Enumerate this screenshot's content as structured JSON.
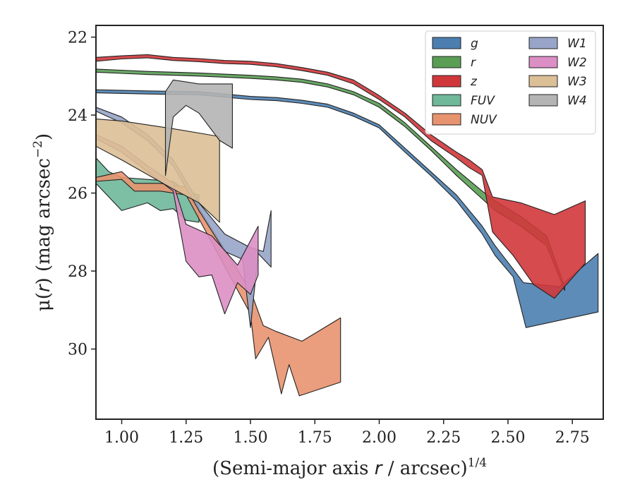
{
  "chart_data": {
    "type": "area",
    "xlabel": "(Semi-major axis r / arcsec)^{1/4}",
    "xlabel_parts": {
      "prefix": "(Semi-major axis ",
      "var": "r",
      "mid": " / arcsec)",
      "sup": "1/4"
    },
    "ylabel": "μ(r) (mag arcsec^-2)",
    "ylabel_parts": {
      "mu": "μ(",
      "var": "r",
      "rest": ") (mag arcsec",
      "sup": "−2",
      "close": ")"
    },
    "xlim": [
      0.9,
      2.87
    ],
    "ylim": [
      31.8,
      21.7
    ],
    "y_inverted": true,
    "xticks": [
      1.0,
      1.25,
      1.5,
      1.75,
      2.0,
      2.25,
      2.5,
      2.75
    ],
    "xtick_labels": [
      "1.00",
      "1.25",
      "1.50",
      "1.75",
      "2.00",
      "2.25",
      "2.50",
      "2.75"
    ],
    "yticks": [
      22,
      24,
      26,
      28,
      30
    ],
    "ytick_labels": [
      "22",
      "24",
      "26",
      "28",
      "30"
    ],
    "legend": {
      "position": "top-right",
      "columns": 2
    },
    "series": [
      {
        "name": "g",
        "label_main": "g",
        "label_sub": "",
        "color": "#4c7fb0",
        "upper": [
          [
            0.9,
            23.35
          ],
          [
            1.1,
            23.38
          ],
          [
            1.3,
            23.4
          ],
          [
            1.5,
            23.52
          ],
          [
            1.6,
            23.55
          ],
          [
            1.7,
            23.62
          ],
          [
            1.8,
            23.72
          ],
          [
            1.9,
            23.95
          ],
          [
            2.0,
            24.25
          ],
          [
            2.1,
            24.85
          ],
          [
            2.2,
            25.45
          ],
          [
            2.3,
            26.05
          ],
          [
            2.4,
            26.85
          ],
          [
            2.45,
            27.35
          ],
          [
            2.52,
            27.95
          ],
          [
            2.56,
            28.3
          ],
          [
            2.7,
            28.4
          ],
          [
            2.85,
            27.55
          ]
        ],
        "lower": [
          [
            0.9,
            23.43
          ],
          [
            1.1,
            23.46
          ],
          [
            1.3,
            23.48
          ],
          [
            1.5,
            23.6
          ],
          [
            1.6,
            23.63
          ],
          [
            1.7,
            23.7
          ],
          [
            1.8,
            23.8
          ],
          [
            1.9,
            24.03
          ],
          [
            2.0,
            24.33
          ],
          [
            2.1,
            24.95
          ],
          [
            2.2,
            25.55
          ],
          [
            2.3,
            26.2
          ],
          [
            2.4,
            27.05
          ],
          [
            2.45,
            27.6
          ],
          [
            2.52,
            28.15
          ],
          [
            2.57,
            29.45
          ],
          [
            2.85,
            29.05
          ]
        ]
      },
      {
        "name": "r",
        "label_main": "r",
        "label_sub": "",
        "color": "#5a9e54",
        "upper": [
          [
            0.9,
            22.82
          ],
          [
            1.0,
            22.85
          ],
          [
            1.1,
            22.88
          ],
          [
            1.3,
            22.92
          ],
          [
            1.5,
            22.98
          ],
          [
            1.6,
            23.02
          ],
          [
            1.7,
            23.08
          ],
          [
            1.8,
            23.2
          ],
          [
            1.9,
            23.4
          ],
          [
            2.0,
            23.7
          ],
          [
            2.1,
            24.2
          ],
          [
            2.2,
            24.8
          ],
          [
            2.3,
            25.4
          ],
          [
            2.4,
            25.95
          ],
          [
            2.45,
            26.2
          ],
          [
            2.55,
            26.6
          ],
          [
            2.65,
            27.1
          ],
          [
            2.72,
            28.4
          ]
        ],
        "lower": [
          [
            0.9,
            22.9
          ],
          [
            1.0,
            22.93
          ],
          [
            1.1,
            22.96
          ],
          [
            1.3,
            23.0
          ],
          [
            1.5,
            23.06
          ],
          [
            1.6,
            23.1
          ],
          [
            1.7,
            23.16
          ],
          [
            1.8,
            23.28
          ],
          [
            1.9,
            23.48
          ],
          [
            2.0,
            23.8
          ],
          [
            2.1,
            24.3
          ],
          [
            2.2,
            24.9
          ],
          [
            2.3,
            25.55
          ],
          [
            2.4,
            26.15
          ],
          [
            2.45,
            26.45
          ],
          [
            2.55,
            26.85
          ],
          [
            2.65,
            27.35
          ],
          [
            2.72,
            28.5
          ]
        ]
      },
      {
        "name": "z",
        "label_main": "z",
        "label_sub": "",
        "color": "#d0373b",
        "upper": [
          [
            0.9,
            22.52
          ],
          [
            1.0,
            22.48
          ],
          [
            1.1,
            22.45
          ],
          [
            1.2,
            22.52
          ],
          [
            1.3,
            22.55
          ],
          [
            1.4,
            22.6
          ],
          [
            1.5,
            22.62
          ],
          [
            1.6,
            22.68
          ],
          [
            1.7,
            22.78
          ],
          [
            1.8,
            22.9
          ],
          [
            1.9,
            23.1
          ],
          [
            2.0,
            23.5
          ],
          [
            2.1,
            23.95
          ],
          [
            2.2,
            24.5
          ],
          [
            2.3,
            24.95
          ],
          [
            2.35,
            25.15
          ],
          [
            2.4,
            25.4
          ],
          [
            2.44,
            26.1
          ],
          [
            2.55,
            26.25
          ],
          [
            2.68,
            26.55
          ],
          [
            2.8,
            26.2
          ]
        ],
        "lower": [
          [
            0.9,
            22.62
          ],
          [
            1.0,
            22.56
          ],
          [
            1.1,
            22.53
          ],
          [
            1.2,
            22.6
          ],
          [
            1.3,
            22.63
          ],
          [
            1.4,
            22.68
          ],
          [
            1.5,
            22.7
          ],
          [
            1.6,
            22.76
          ],
          [
            1.7,
            22.86
          ],
          [
            1.8,
            22.98
          ],
          [
            1.9,
            23.2
          ],
          [
            2.0,
            23.6
          ],
          [
            2.1,
            24.05
          ],
          [
            2.2,
            24.65
          ],
          [
            2.3,
            25.1
          ],
          [
            2.35,
            25.35
          ],
          [
            2.4,
            25.55
          ],
          [
            2.44,
            27.0
          ],
          [
            2.52,
            27.6
          ],
          [
            2.6,
            28.35
          ],
          [
            2.68,
            28.7
          ],
          [
            2.8,
            27.8
          ]
        ]
      },
      {
        "name": "FUV",
        "label_main": "FUV",
        "label_sub": "",
        "color": "#6fb89a",
        "upper": [
          [
            0.9,
            25.1
          ],
          [
            0.95,
            25.45
          ],
          [
            1.0,
            25.6
          ],
          [
            1.1,
            25.65
          ],
          [
            1.2,
            25.7
          ],
          [
            1.25,
            25.95
          ],
          [
            1.3,
            26.05
          ]
        ],
        "lower": [
          [
            0.9,
            25.75
          ],
          [
            1.0,
            26.45
          ],
          [
            1.1,
            26.25
          ],
          [
            1.15,
            26.45
          ],
          [
            1.2,
            26.4
          ],
          [
            1.25,
            26.7
          ],
          [
            1.3,
            26.75
          ]
        ]
      },
      {
        "name": "NUV",
        "label_main": "NUV",
        "label_sub": "",
        "color": "#e8936f",
        "upper": [
          [
            0.9,
            25.6
          ],
          [
            1.0,
            25.45
          ],
          [
            1.05,
            25.75
          ],
          [
            1.15,
            25.75
          ],
          [
            1.25,
            25.85
          ],
          [
            1.5,
            28.5
          ],
          [
            1.55,
            29.4
          ],
          [
            1.6,
            29.55
          ],
          [
            1.7,
            29.8
          ],
          [
            1.85,
            29.2
          ]
        ],
        "lower": [
          [
            0.9,
            25.7
          ],
          [
            1.0,
            25.65
          ],
          [
            1.05,
            25.95
          ],
          [
            1.15,
            25.95
          ],
          [
            1.25,
            26.05
          ],
          [
            1.5,
            29.1
          ],
          [
            1.52,
            30.25
          ],
          [
            1.57,
            29.7
          ],
          [
            1.62,
            31.15
          ],
          [
            1.65,
            30.4
          ],
          [
            1.69,
            31.2
          ],
          [
            1.85,
            30.85
          ]
        ]
      },
      {
        "name": "W1",
        "label_main": "W",
        "label_sub": "1",
        "color": "#98a5c8",
        "upper": [
          [
            0.9,
            23.8
          ],
          [
            1.0,
            24.05
          ],
          [
            1.1,
            24.5
          ],
          [
            1.2,
            25.15
          ],
          [
            1.3,
            26.25
          ],
          [
            1.4,
            27.05
          ],
          [
            1.5,
            27.4
          ],
          [
            1.55,
            27.5
          ],
          [
            1.58,
            26.45
          ]
        ],
        "lower": [
          [
            0.9,
            23.9
          ],
          [
            1.0,
            24.2
          ],
          [
            1.1,
            24.65
          ],
          [
            1.2,
            25.3
          ],
          [
            1.3,
            26.45
          ],
          [
            1.4,
            27.5
          ],
          [
            1.47,
            27.7
          ],
          [
            1.5,
            29.45
          ],
          [
            1.53,
            27.55
          ],
          [
            1.58,
            27.9
          ]
        ]
      },
      {
        "name": "W2",
        "label_main": "W",
        "label_sub": "2",
        "color": "#dc8fc4",
        "upper": [
          [
            0.9,
            24.5
          ],
          [
            1.0,
            24.8
          ],
          [
            1.1,
            25.3
          ],
          [
            1.2,
            25.75
          ],
          [
            1.25,
            26.8
          ],
          [
            1.35,
            27.1
          ],
          [
            1.45,
            27.85
          ],
          [
            1.53,
            26.85
          ]
        ],
        "lower": [
          [
            0.9,
            24.6
          ],
          [
            1.0,
            24.95
          ],
          [
            1.1,
            25.45
          ],
          [
            1.2,
            25.95
          ],
          [
            1.25,
            27.75
          ],
          [
            1.3,
            28.15
          ],
          [
            1.35,
            28.1
          ],
          [
            1.4,
            29.1
          ],
          [
            1.45,
            28.3
          ],
          [
            1.5,
            28.6
          ],
          [
            1.53,
            28.1
          ]
        ]
      },
      {
        "name": "W3",
        "label_main": "W",
        "label_sub": "3",
        "color": "#dbbf96",
        "upper": [
          [
            0.9,
            24.1
          ],
          [
            1.0,
            24.15
          ],
          [
            1.2,
            24.35
          ],
          [
            1.38,
            24.55
          ]
        ],
        "lower": [
          [
            0.9,
            24.8
          ],
          [
            1.0,
            25.15
          ],
          [
            1.2,
            25.9
          ],
          [
            1.3,
            26.25
          ],
          [
            1.38,
            26.75
          ]
        ]
      },
      {
        "name": "W4",
        "label_main": "W",
        "label_sub": "4",
        "color": "#b4b4b4",
        "upper": [
          [
            1.17,
            23.4
          ],
          [
            1.2,
            23.1
          ],
          [
            1.3,
            23.2
          ],
          [
            1.43,
            23.2
          ]
        ],
        "lower": [
          [
            1.17,
            25.55
          ],
          [
            1.2,
            24.05
          ],
          [
            1.25,
            23.75
          ],
          [
            1.3,
            23.95
          ],
          [
            1.38,
            24.65
          ],
          [
            1.43,
            24.85
          ]
        ]
      }
    ]
  }
}
